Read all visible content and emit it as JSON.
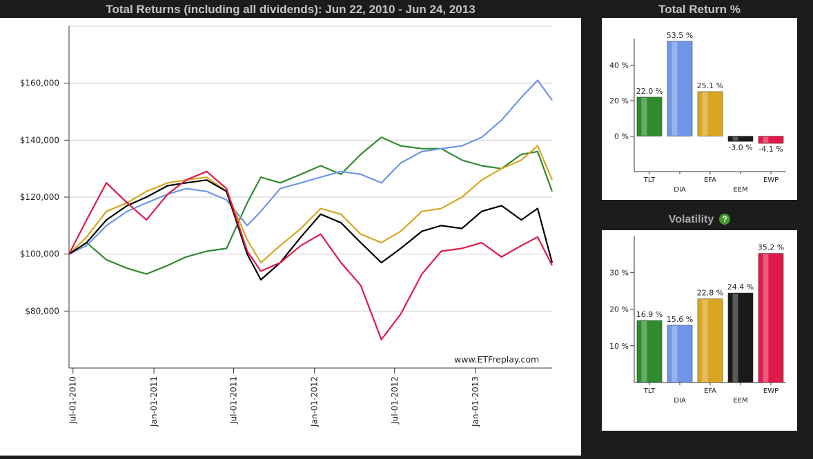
{
  "main_title": "Total Returns (including all dividends): Jun 22, 2010 - Jun 24, 2013",
  "bar_title": "Total Return %",
  "vol_title": "Volatility",
  "watermark": "www.ETFreplay.com",
  "help_icon": "question-circle-icon",
  "chart_data": [
    {
      "id": "total-returns-line",
      "type": "line",
      "title": "Total Returns (including all dividends): Jun 22, 2010 - Jun 24, 2013",
      "x_tick_labels": [
        "Jul-01-2010",
        "Jan-01-2011",
        "Jul-01-2011",
        "Jan-01-2012",
        "Jul-01-2012",
        "Jan-01-2013"
      ],
      "y_tick_labels": [
        "$80,000",
        "$100,000",
        "$120,000",
        "$140,000",
        "$160,000"
      ],
      "ylim": [
        60000,
        180000
      ],
      "grid": true,
      "x": [
        "2010-06-22",
        "2010-08-01",
        "2010-09-15",
        "2010-11-01",
        "2010-12-15",
        "2011-02-01",
        "2011-03-15",
        "2011-05-01",
        "2011-06-15",
        "2011-08-01",
        "2011-09-01",
        "2011-10-15",
        "2011-12-01",
        "2012-01-15",
        "2012-03-01",
        "2012-04-15",
        "2012-06-01",
        "2012-07-15",
        "2012-09-01",
        "2012-10-15",
        "2012-12-01",
        "2013-01-15",
        "2013-03-01",
        "2013-04-15",
        "2013-05-22",
        "2013-06-24"
      ],
      "series": [
        {
          "color": "#2e8b2e",
          "values": [
            100000,
            104000,
            98000,
            95000,
            93000,
            96000,
            99000,
            101000,
            102000,
            118000,
            127000,
            125000,
            128000,
            131000,
            128000,
            135000,
            141000,
            138000,
            137000,
            137000,
            133000,
            131000,
            130000,
            135000,
            136000,
            122000
          ]
        },
        {
          "color": "#6f96e6",
          "values": [
            100000,
            103000,
            110000,
            115000,
            118000,
            121000,
            123000,
            122000,
            119000,
            110000,
            115000,
            123000,
            125000,
            127000,
            129000,
            128000,
            125000,
            132000,
            136000,
            137000,
            138000,
            141000,
            147000,
            155000,
            161000,
            154000
          ]
        },
        {
          "color": "#daa520",
          "values": [
            100000,
            106000,
            115000,
            118000,
            122000,
            125000,
            126000,
            127000,
            122000,
            105000,
            97000,
            103000,
            109000,
            116000,
            114000,
            107000,
            104000,
            108000,
            115000,
            116000,
            120000,
            126000,
            130000,
            133000,
            138000,
            126000
          ]
        },
        {
          "color": "#000000",
          "values": [
            100000,
            104000,
            112000,
            117000,
            120000,
            124000,
            125000,
            126000,
            122000,
            100000,
            91000,
            97000,
            106000,
            114000,
            111000,
            104000,
            97000,
            102000,
            108000,
            110000,
            109000,
            115000,
            117000,
            112000,
            116000,
            97000
          ]
        },
        {
          "color": "#e0194a",
          "values": [
            100000,
            112000,
            125000,
            118000,
            112000,
            121000,
            126000,
            129000,
            123000,
            101000,
            94000,
            97000,
            103000,
            107000,
            97000,
            89000,
            70000,
            79000,
            93000,
            101000,
            102000,
            104000,
            99000,
            103000,
            106000,
            96000
          ]
        }
      ]
    },
    {
      "id": "total-return-bars",
      "type": "bar",
      "title": "Total Return %",
      "categories": [
        "TLT",
        "DIA",
        "EFA",
        "EEM",
        "EWP"
      ],
      "values": [
        22.0,
        53.5,
        25.1,
        -3.0,
        -4.1
      ],
      "value_labels": [
        "22.0 %",
        "53.5 %",
        "25.1 %",
        "-3.0 %",
        "-4.1 %"
      ],
      "y_tick_labels": [
        "0 %",
        "20 %",
        "40 %"
      ],
      "ylim": [
        -20,
        55
      ],
      "colors": [
        "#2e8b2e",
        "#6f96e6",
        "#daa520",
        "#1a1a1a",
        "#e0194a"
      ]
    },
    {
      "id": "volatility-bars",
      "type": "bar",
      "title": "Volatility",
      "categories": [
        "TLT",
        "DIA",
        "EFA",
        "EEM",
        "EWP"
      ],
      "values": [
        16.9,
        15.6,
        22.8,
        24.4,
        35.2
      ],
      "value_labels": [
        "16.9 %",
        "15.6 %",
        "22.8 %",
        "24.4 %",
        "35.2 %"
      ],
      "y_tick_labels": [
        "10 %",
        "20 %",
        "30 %"
      ],
      "ylim": [
        0,
        40
      ],
      "colors": [
        "#2e8b2e",
        "#6f96e6",
        "#daa520",
        "#1a1a1a",
        "#e0194a"
      ]
    }
  ]
}
